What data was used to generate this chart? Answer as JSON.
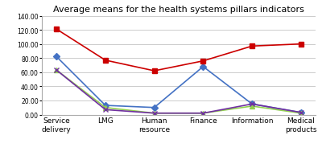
{
  "title": "Average means for the health systems pillars indicators",
  "categories": [
    "Service\ndelivery",
    "LMG",
    "Human\nresource",
    "Finance",
    "Information",
    "Medical\nproducts"
  ],
  "series": {
    "Treatment Group  Pretest": {
      "values": [
        82,
        13,
        10,
        68,
        15,
        3
      ],
      "color": "#4472C4",
      "marker": "D",
      "linestyle": "-"
    },
    "Treatment Group  Posttest": {
      "values": [
        121,
        77,
        62,
        76,
        97,
        100
      ],
      "color": "#CC0000",
      "marker": "s",
      "linestyle": "-"
    },
    "Control Group  Pretest": {
      "values": [
        63,
        10,
        2,
        2,
        12,
        2
      ],
      "color": "#92D050",
      "marker": "^",
      "linestyle": "-"
    },
    "Control Group  Posttest": {
      "values": [
        63,
        7,
        2,
        2,
        15,
        3
      ],
      "color": "#7030A0",
      "marker": "x",
      "linestyle": "-"
    }
  },
  "ylim": [
    0,
    140
  ],
  "ytick_labels": [
    "0.00",
    "20.00",
    "40.00",
    "60.00",
    "80.00",
    "100.00",
    "120.00",
    "140.00"
  ],
  "yticks": [
    0,
    20,
    40,
    60,
    80,
    100,
    120,
    140
  ],
  "background_color": "#ffffff",
  "grid_color": "#cccccc"
}
